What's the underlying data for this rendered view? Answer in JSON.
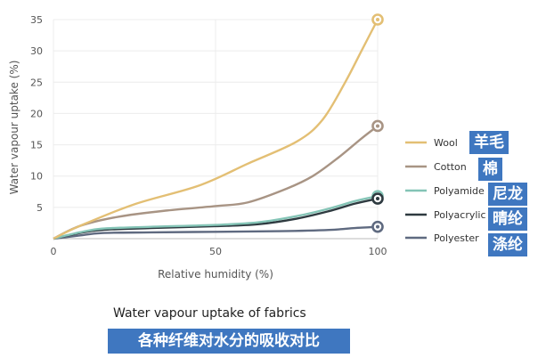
{
  "chart_data": {
    "type": "line",
    "xlabel": "Relative humidity (%)",
    "ylabel": "Water vapour uptake (%)",
    "xlim": [
      0,
      100
    ],
    "ylim": [
      0,
      35
    ],
    "x_ticks": [
      0,
      50,
      100
    ],
    "y_ticks": [
      5,
      10,
      15,
      20,
      25,
      30,
      35
    ],
    "grid": true,
    "legend_position": "right",
    "series": [
      {
        "name": "Wool",
        "name_zh": "羊毛",
        "color": "#e3bf74",
        "points": [
          [
            0,
            0
          ],
          [
            8,
            2
          ],
          [
            25,
            5.5
          ],
          [
            45,
            8.5
          ],
          [
            60,
            12
          ],
          [
            75,
            15.5
          ],
          [
            83,
            19
          ],
          [
            90,
            25
          ],
          [
            95,
            30
          ],
          [
            100,
            35
          ]
        ]
      },
      {
        "name": "Cotton",
        "name_zh": "棉",
        "color": "#a89484",
        "points": [
          [
            0,
            0
          ],
          [
            8,
            2
          ],
          [
            20,
            3.5
          ],
          [
            35,
            4.5
          ],
          [
            50,
            5.2
          ],
          [
            60,
            5.8
          ],
          [
            72,
            8
          ],
          [
            80,
            10
          ],
          [
            88,
            13
          ],
          [
            95,
            16
          ],
          [
            100,
            18
          ]
        ]
      },
      {
        "name": "Polyamide",
        "name_zh": "尼龙",
        "color": "#84c4b6",
        "points": [
          [
            0,
            0
          ],
          [
            8,
            1
          ],
          [
            15,
            1.6
          ],
          [
            30,
            1.9
          ],
          [
            50,
            2.2
          ],
          [
            63,
            2.6
          ],
          [
            75,
            3.6
          ],
          [
            85,
            4.8
          ],
          [
            93,
            6
          ],
          [
            100,
            6.8
          ]
        ]
      },
      {
        "name": "Polyacrylic",
        "name_zh": "晴纶",
        "color": "#2e3a40",
        "points": [
          [
            0,
            0
          ],
          [
            8,
            0.9
          ],
          [
            15,
            1.4
          ],
          [
            30,
            1.7
          ],
          [
            50,
            2.0
          ],
          [
            63,
            2.3
          ],
          [
            75,
            3.2
          ],
          [
            85,
            4.4
          ],
          [
            93,
            5.6
          ],
          [
            100,
            6.4
          ]
        ]
      },
      {
        "name": "Polyester",
        "name_zh": "涤纶",
        "color": "#5f6a80",
        "points": [
          [
            0,
            0
          ],
          [
            8,
            0.5
          ],
          [
            15,
            0.9
          ],
          [
            30,
            1.0
          ],
          [
            50,
            1.1
          ],
          [
            70,
            1.2
          ],
          [
            85,
            1.4
          ],
          [
            93,
            1.7
          ],
          [
            100,
            1.9
          ]
        ]
      }
    ]
  },
  "caption": {
    "en": "Water vapour uptake of fabrics",
    "zh": "各种纤维对水分的吸收对比"
  }
}
